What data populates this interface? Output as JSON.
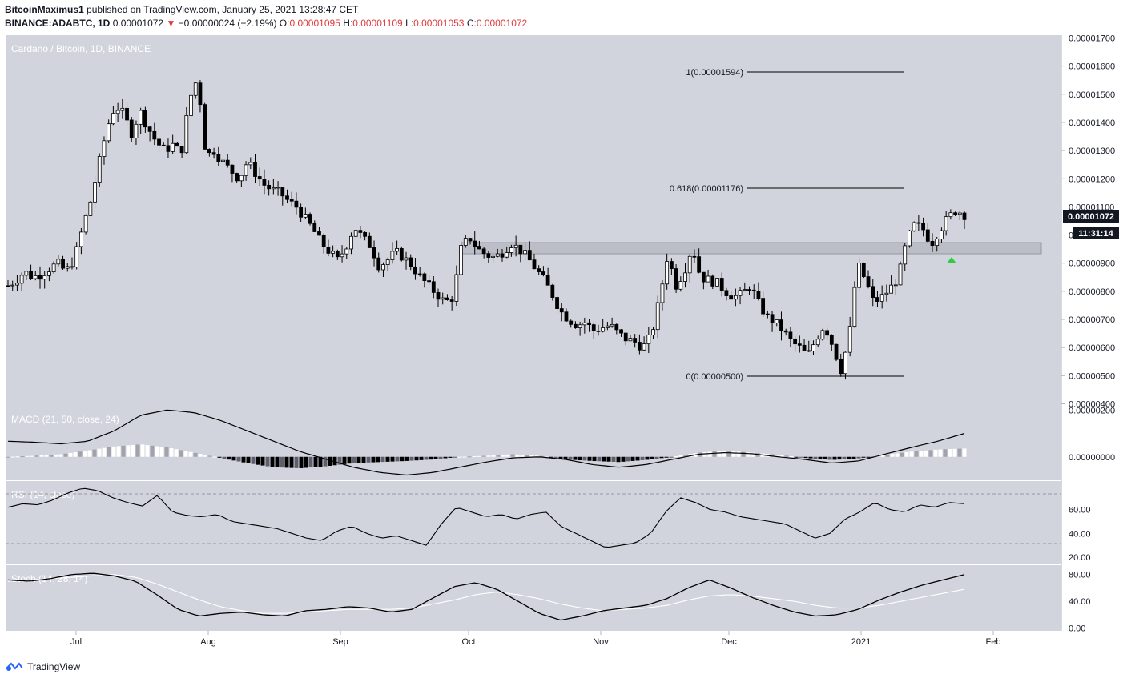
{
  "header": {
    "author": "BitcoinMaximus1",
    "published_text": "published on TradingView.com, January 25, 2021 13:28:47 CET",
    "symbol": "BINANCE:ADABTC, 1D",
    "last": "0.00001072",
    "change": "−0.00000024 (−2.19%)",
    "open_label": "O:",
    "open": "0.00001095",
    "high_label": "H:",
    "high": "0.00001109",
    "low_label": "L:",
    "low": "0.00001053",
    "close_label": "C:",
    "close": "0.00001072"
  },
  "main_pane": {
    "title": "Cardano / Bitcoin, 1D, BINANCE",
    "currency": "BTC",
    "last_price_label": "0.00001072",
    "countdown_label": "11:31:14",
    "fib_levels": [
      {
        "label": "1(0.00001594)",
        "value": 15.94
      },
      {
        "label": "0.618(0.00001176)",
        "value": 11.76
      },
      {
        "label": "0(0.00000500)",
        "value": 5.0
      }
    ],
    "resistance_zone": {
      "low": 9.4,
      "high": 9.8
    }
  },
  "indicators": {
    "macd_label": "MACD (21, 50, close, 24)",
    "rsi_label": "RSI (14, close)",
    "stoch_label": "Stoch (14, 28, 14)"
  },
  "chart_data": [
    {
      "type": "candlestick",
      "title": "Cardano / Bitcoin, 1D, BINANCE",
      "unit": "BTC ×1e-6",
      "x_labels": [
        "Jul",
        "Aug",
        "Sep",
        "Oct",
        "Nov",
        "Dec",
        "2021",
        "Feb"
      ],
      "y_tick_labels": [
        "0.00000400",
        "0.00000500",
        "0.00000600",
        "0.00000700",
        "0.00000800",
        "0.00000900",
        "0.00001000",
        "0.00001100",
        "0.00001200",
        "0.00001300",
        "0.00001400",
        "0.00001500",
        "0.00001600",
        "0.00001700"
      ],
      "ylim": [
        3.9,
        17.1
      ],
      "close_path": [
        8.2,
        8.4,
        8.7,
        8.5,
        8.6,
        8.8,
        9.0,
        8.7,
        9.1,
        10.2,
        11.2,
        12.5,
        13.8,
        14.6,
        14.3,
        13.6,
        14.4,
        13.8,
        13.3,
        13.0,
        13.2,
        12.9,
        14.8,
        15.6,
        12.8,
        13.0,
        12.6,
        12.3,
        12.0,
        12.6,
        12.2,
        11.8,
        11.6,
        11.5,
        11.2,
        11.0,
        10.6,
        10.2,
        9.7,
        9.4,
        9.1,
        9.6,
        10.3,
        9.9,
        9.6,
        8.9,
        9.1,
        9.4,
        9.2,
        8.9,
        8.5,
        8.2,
        7.9,
        7.6,
        7.8,
        9.6,
        9.9,
        9.5,
        9.3,
        9.2,
        9.4,
        9.7,
        9.5,
        9.2,
        8.8,
        8.4,
        7.9,
        7.3,
        7.0,
        6.8,
        6.9,
        6.6,
        6.7,
        6.8,
        6.5,
        6.3,
        6.2,
        6.0,
        6.4,
        7.7,
        9.3,
        8.2,
        8.7,
        9.6,
        8.5,
        8.4,
        8.3,
        8.0,
        7.8,
        7.9,
        8.2,
        7.6,
        7.1,
        6.9,
        6.6,
        6.2,
        6.0,
        5.7,
        6.3,
        6.8,
        6.1,
        5.2,
        6.3,
        9.0,
        8.4,
        7.6,
        7.8,
        8.1,
        8.5,
        9.8,
        10.4,
        10.2,
        9.7,
        10.2,
        10.6,
        10.9,
        10.72
      ]
    },
    {
      "type": "line",
      "title": "MACD (21, 50, close, 24)",
      "y_tick_labels": [
        "0.00000000",
        "0.00000200"
      ],
      "ylim": [
        -0.45,
        0.95
      ],
      "macd_path": [
        0.3,
        0.28,
        0.25,
        0.3,
        0.5,
        0.8,
        0.9,
        0.85,
        0.7,
        0.5,
        0.3,
        0.1,
        -0.05,
        -0.2,
        -0.3,
        -0.35,
        -0.3,
        -0.2,
        -0.1,
        -0.02,
        0.0,
        -0.05,
        -0.15,
        -0.2,
        -0.15,
        -0.05,
        0.05,
        0.08,
        0.06,
        0.0,
        -0.05,
        -0.12,
        -0.08,
        0.05,
        0.18,
        0.3,
        0.45
      ],
      "histogram_path": [
        0.0,
        0.02,
        0.05,
        0.12,
        0.2,
        0.24,
        0.18,
        0.08,
        -0.02,
        -0.12,
        -0.2,
        -0.22,
        -0.18,
        -0.12,
        -0.1,
        -0.08,
        -0.05,
        0.0,
        0.02,
        0.05,
        0.02,
        -0.05,
        -0.08,
        -0.1,
        -0.06,
        0.0,
        0.08,
        0.12,
        0.08,
        0.04,
        -0.02,
        -0.06,
        -0.03,
        0.04,
        0.1,
        0.14,
        0.16
      ]
    },
    {
      "type": "line",
      "title": "RSI (14, close)",
      "y_tick_labels": [
        "20.00",
        "40.00",
        "60.00"
      ],
      "ylim": [
        14,
        84
      ],
      "bands": [
        30,
        70
      ],
      "rsi_path": [
        62,
        65,
        64,
        68,
        74,
        78,
        76,
        70,
        66,
        63,
        72,
        58,
        55,
        54,
        56,
        50,
        48,
        46,
        44,
        40,
        36,
        34,
        42,
        46,
        40,
        36,
        38,
        34,
        30,
        48,
        62,
        58,
        54,
        56,
        52,
        56,
        58,
        46,
        40,
        34,
        28,
        30,
        32,
        40,
        58,
        70,
        66,
        60,
        58,
        54,
        52,
        50,
        48,
        42,
        36,
        40,
        52,
        58,
        66,
        60,
        58,
        64,
        62,
        66,
        65
      ]
    },
    {
      "type": "line",
      "title": "Stoch (14, 28, 14)",
      "y_tick_labels": [
        "0.00",
        "40.00",
        "80.00"
      ],
      "ylim": [
        -4,
        94
      ],
      "k_path": [
        72,
        70,
        74,
        80,
        82,
        78,
        70,
        50,
        28,
        18,
        22,
        24,
        20,
        18,
        26,
        28,
        32,
        30,
        24,
        28,
        45,
        62,
        68,
        58,
        40,
        22,
        12,
        18,
        26,
        30,
        34,
        44,
        60,
        72,
        60,
        46,
        34,
        24,
        18,
        20,
        28,
        42,
        54,
        64,
        72,
        80
      ],
      "d_path": [
        70,
        72,
        74,
        76,
        78,
        80,
        76,
        66,
        54,
        42,
        32,
        26,
        22,
        22,
        24,
        26,
        28,
        28,
        28,
        30,
        36,
        42,
        50,
        54,
        50,
        44,
        36,
        30,
        26,
        28,
        30,
        34,
        42,
        48,
        50,
        48,
        44,
        40,
        34,
        30,
        30,
        34,
        40,
        46,
        52,
        58
      ]
    }
  ],
  "footer": {
    "brand": "TradingView"
  },
  "colors": {
    "pane_bg": "#d1d4dc",
    "candle": "#000000",
    "zone": "#b2b5be",
    "arrow": "#2ecc40"
  }
}
